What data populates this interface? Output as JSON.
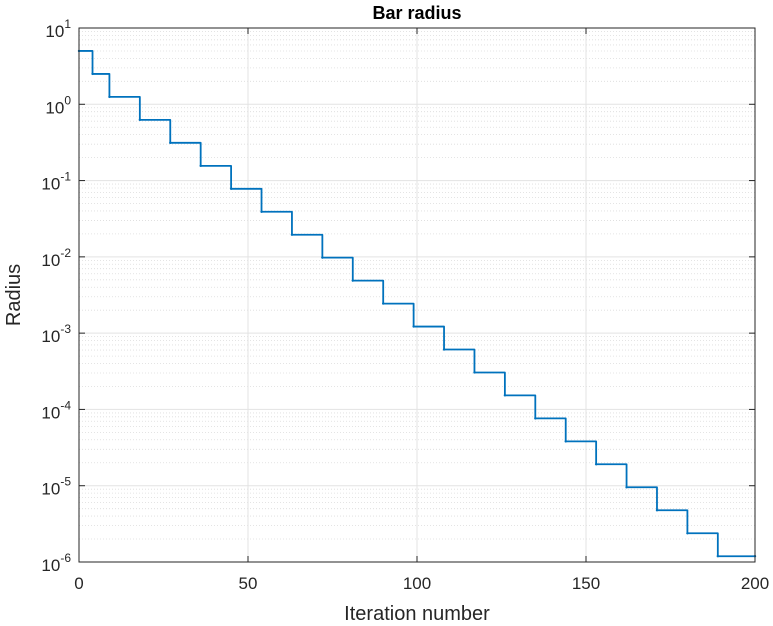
{
  "chart_data": {
    "type": "line",
    "title": "Bar radius",
    "xlabel": "Iteration number",
    "ylabel": "Radius",
    "xlim": [
      0,
      200
    ],
    "ylim": [
      1e-06,
      10
    ],
    "yscale": "log",
    "grid": true,
    "minor_grid": true,
    "xticks": [
      0,
      50,
      100,
      150,
      200
    ],
    "xtick_labels": [
      "0",
      "50",
      "100",
      "150",
      "200"
    ],
    "yticks": [
      {
        "value": 10,
        "base": "10",
        "exp": "1"
      },
      {
        "value": 1,
        "base": "10",
        "exp": "0"
      },
      {
        "value": 0.1,
        "base": "10",
        "exp": "-1"
      },
      {
        "value": 0.01,
        "base": "10",
        "exp": "-2"
      },
      {
        "value": 0.001,
        "base": "10",
        "exp": "-3"
      },
      {
        "value": 0.0001,
        "base": "10",
        "exp": "-4"
      },
      {
        "value": 1e-05,
        "base": "10",
        "exp": "-5"
      },
      {
        "value": 1e-06,
        "base": "10",
        "exp": "-6"
      }
    ],
    "series": [
      {
        "color": "#0072BD",
        "step": "post",
        "x": [
          0,
          4,
          9,
          18,
          27,
          36,
          45,
          54,
          63,
          72,
          81,
          90,
          99,
          108,
          117,
          126,
          135,
          144,
          153,
          162,
          171,
          180,
          189,
          200
        ],
        "y": [
          5,
          2.5,
          1.25,
          0.625,
          0.3125,
          0.156,
          0.078,
          0.039,
          0.0195,
          0.00977,
          0.00488,
          0.00244,
          0.00122,
          0.00061,
          0.000305,
          0.000153,
          7.63e-05,
          3.81e-05,
          1.91e-05,
          9.54e-06,
          4.77e-06,
          2.38e-06,
          1.19e-06,
          1.19e-06
        ]
      }
    ]
  }
}
